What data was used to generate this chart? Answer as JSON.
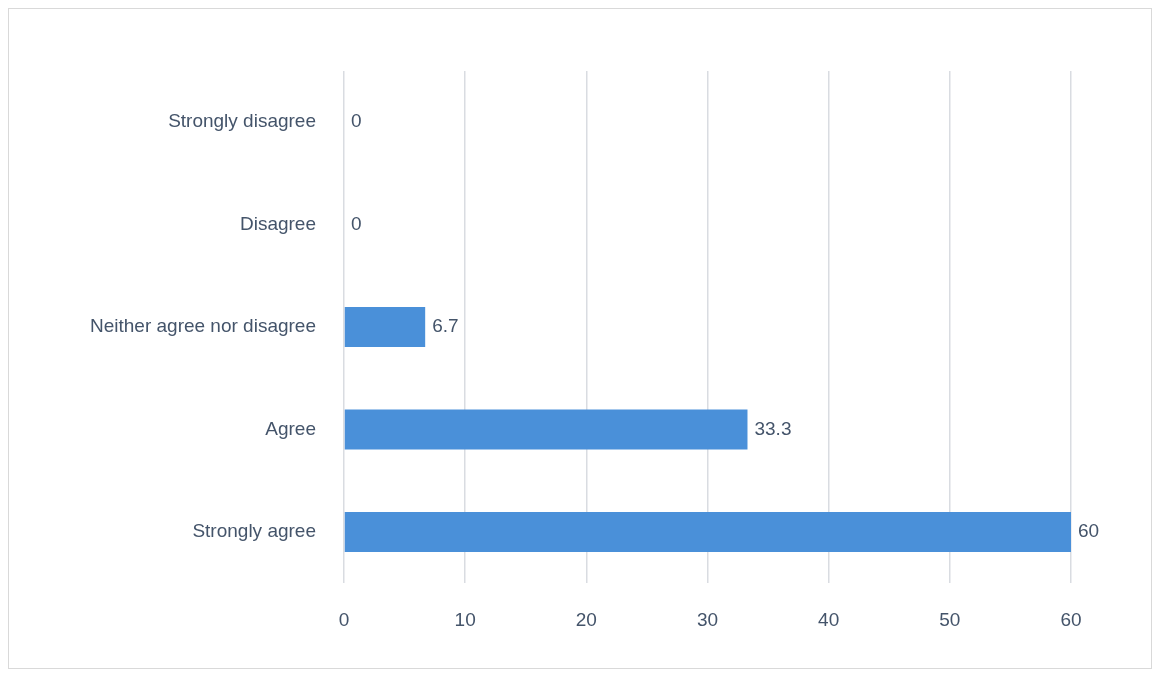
{
  "chart_data": {
    "type": "bar",
    "orientation": "horizontal",
    "categories": [
      "Strongly disagree",
      "Disagree",
      "Neither agree nor disagree",
      "Agree",
      "Strongly agree"
    ],
    "values": [
      0,
      0,
      6.7,
      33.3,
      60
    ],
    "color": "#4a90d9",
    "xlim": [
      0,
      60
    ],
    "xticks": [
      0,
      10,
      20,
      30,
      40,
      50,
      60
    ],
    "grid": "x",
    "data_labels": true
  }
}
